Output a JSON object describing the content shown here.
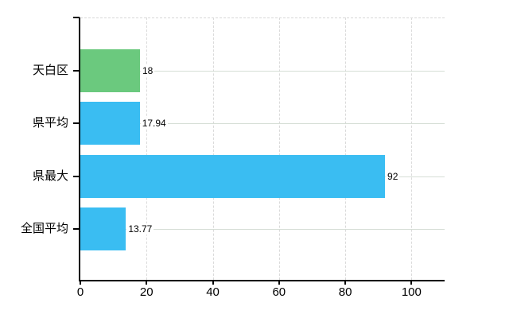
{
  "chart_data": {
    "type": "bar",
    "orientation": "horizontal",
    "title": "",
    "xlabel": "",
    "ylabel": "",
    "categories": [
      "天白区",
      "県平均",
      "県最大",
      "全国平均"
    ],
    "values": [
      18,
      17.94,
      92,
      13.77
    ],
    "value_labels": [
      "18",
      "17.94",
      "92",
      "13.77"
    ],
    "bar_colors": [
      "#6bc97e",
      "#3abdf2",
      "#3abdf2",
      "#3abdf2"
    ],
    "xlim": [
      0,
      110
    ],
    "xticks": [
      0,
      20,
      40,
      60,
      80,
      100
    ],
    "grid": true,
    "legend": false,
    "colors": {
      "axis": "#000000",
      "text": "#000000",
      "h_gridline": "#d6ded6",
      "v_gridline": "#dadada",
      "background": "#ffffff"
    }
  }
}
